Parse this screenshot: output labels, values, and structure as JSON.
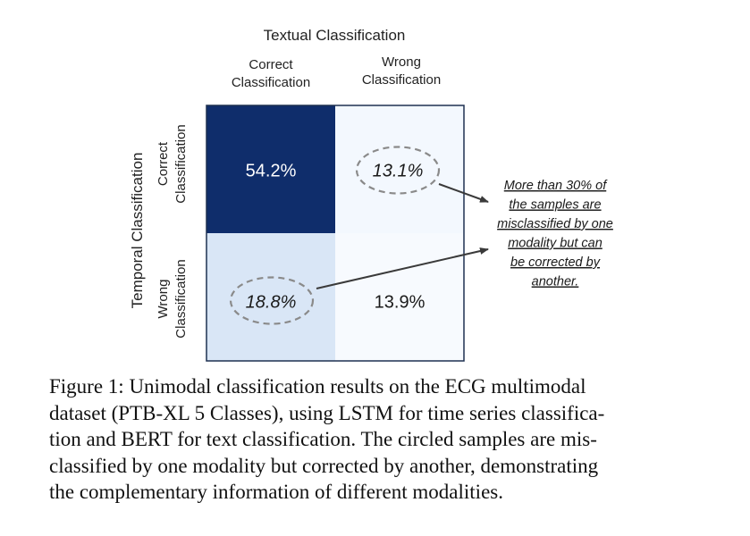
{
  "chart_data": {
    "type": "heatmap",
    "title": "Textual Classification",
    "xlabel": "Textual Classification",
    "ylabel": "Temporal Classification",
    "columns": [
      "Correct\nClassification",
      "Wrong\nClassification"
    ],
    "rows": [
      "Correct\nClassification",
      "Wrong\nClassification"
    ],
    "cells": [
      {
        "row": 0,
        "col": 0,
        "value": 54.2,
        "label": "54.2%",
        "color": "#0f2d6b",
        "circled": false
      },
      {
        "row": 0,
        "col": 1,
        "value": 13.1,
        "label": "13.1%",
        "color": "#f3f8fe",
        "circled": true
      },
      {
        "row": 1,
        "col": 0,
        "value": 18.8,
        "label": "18.8%",
        "color": "#d9e6f6",
        "circled": true
      },
      {
        "row": 1,
        "col": 1,
        "value": 13.9,
        "label": "13.9%",
        "color": "#f7fafe",
        "circled": false
      }
    ],
    "annotation": {
      "lines": [
        "More than 30% of",
        "the samples are",
        "misclassified by one",
        "modality but can",
        "be corrected by",
        "another."
      ]
    }
  },
  "caption": {
    "lines": [
      "Figure 1: Unimodal classification results on the ECG multimodal",
      "dataset (PTB-XL 5 Classes), using LSTM for time series classifica-",
      "tion and BERT for text classification. The circled samples are mis-",
      "classified by one modality but corrected by another, demonstrating",
      "the complementary information of different modalities."
    ]
  }
}
